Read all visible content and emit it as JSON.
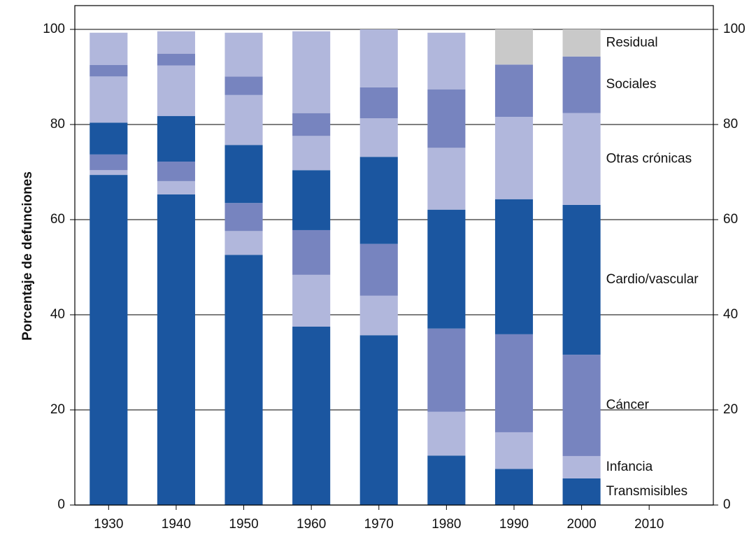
{
  "chart_data": {
    "type": "stacked_bar",
    "y_label": "Porcentaje de defunciones",
    "x": [
      1930,
      1940,
      1950,
      1960,
      1970,
      1980,
      1990,
      2000
    ],
    "xlim": [
      1925,
      2019.5
    ],
    "xticks": [
      1930,
      1940,
      1950,
      1960,
      1970,
      1980,
      1990,
      2000,
      2010
    ],
    "ylim": [
      0,
      105
    ],
    "yticks": [
      0,
      20,
      40,
      60,
      80,
      100
    ],
    "y2lim": [
      0,
      105
    ],
    "y2ticks": [
      0,
      20,
      40,
      60,
      80,
      100
    ],
    "grid": true,
    "series": [
      {
        "name": "Transmisibles",
        "color": "#1b56a0",
        "values": [
          69.4,
          65.3,
          52.6,
          37.5,
          35.7,
          10.4,
          7.6,
          5.6
        ]
      },
      {
        "name": "Infancia",
        "color": "#b1b7dc",
        "values": [
          1.0,
          2.8,
          5.0,
          10.9,
          8.3,
          9.2,
          7.7,
          4.7
        ]
      },
      {
        "name": "Cáncer",
        "color": "#7784bf",
        "values": [
          3.3,
          4.1,
          5.9,
          9.4,
          10.9,
          17.5,
          20.6,
          21.3
        ]
      },
      {
        "name": "Cardio/vascular",
        "color": "#1b56a0",
        "values": [
          6.7,
          9.6,
          12.2,
          12.6,
          18.3,
          25.0,
          28.4,
          31.5
        ]
      },
      {
        "name": "Otras crónicas",
        "color": "#b1b7dc",
        "values": [
          9.7,
          10.6,
          10.5,
          7.2,
          8.1,
          13.0,
          17.3,
          19.3
        ]
      },
      {
        "name": "Sociales",
        "color": "#7784bf",
        "values": [
          2.4,
          2.5,
          3.9,
          4.8,
          6.5,
          12.3,
          11.0,
          11.9
        ]
      },
      {
        "name": "Residual",
        "colors": [
          "#b1b7dc",
          "#b1b7dc",
          "#b1b7dc",
          "#b1b7dc",
          "#b1b7dc",
          "#b1b7dc",
          "#c9c9c9",
          "#c9c9c9"
        ],
        "values": [
          6.8,
          4.7,
          9.2,
          17.2,
          12.2,
          11.9,
          7.4,
          5.7
        ]
      }
    ]
  }
}
